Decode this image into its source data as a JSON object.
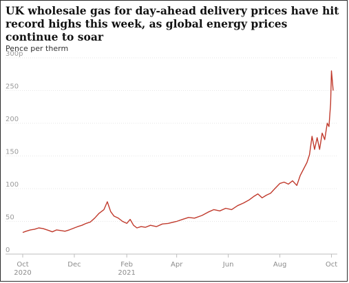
{
  "chart_data": {
    "type": "line",
    "title": "UK wholesale gas for day-ahead delivery prices have hit record highs this week, as global energy prices continue to soar",
    "ylabel": "Pence per therm",
    "xlabel": "",
    "ylim": [
      0,
      300
    ],
    "y_ticks": [
      {
        "value": 0,
        "label": "0"
      },
      {
        "value": 50,
        "label": "50"
      },
      {
        "value": 100,
        "label": "100"
      },
      {
        "value": 150,
        "label": "150"
      },
      {
        "value": 200,
        "label": "200"
      },
      {
        "value": 250,
        "label": "250"
      },
      {
        "value": 300,
        "label": "300p"
      }
    ],
    "x_ticks": [
      {
        "date": "2020-10-01",
        "label": "Oct",
        "sublabel": "2020"
      },
      {
        "date": "2020-12-01",
        "label": "Dec",
        "sublabel": ""
      },
      {
        "date": "2021-02-01",
        "label": "Feb",
        "sublabel": "2021"
      },
      {
        "date": "2021-04-01",
        "label": "Apr",
        "sublabel": ""
      },
      {
        "date": "2021-06-01",
        "label": "Jun",
        "sublabel": ""
      },
      {
        "date": "2021-08-01",
        "label": "Aug",
        "sublabel": ""
      },
      {
        "date": "2021-10-01",
        "label": "Oct",
        "sublabel": ""
      }
    ],
    "xlim": [
      "2020-10-01",
      "2021-10-03"
    ],
    "grid": true,
    "series": [
      {
        "color": "#c0392b",
        "points": [
          [
            "2020-10-01",
            33
          ],
          [
            "2020-10-05",
            35
          ],
          [
            "2020-10-10",
            37
          ],
          [
            "2020-10-15",
            38
          ],
          [
            "2020-10-20",
            40
          ],
          [
            "2020-10-25",
            39
          ],
          [
            "2020-11-01",
            36
          ],
          [
            "2020-11-05",
            34
          ],
          [
            "2020-11-10",
            37
          ],
          [
            "2020-11-15",
            36
          ],
          [
            "2020-11-20",
            35
          ],
          [
            "2020-11-25",
            37
          ],
          [
            "2020-12-01",
            40
          ],
          [
            "2020-12-05",
            42
          ],
          [
            "2020-12-10",
            44
          ],
          [
            "2020-12-15",
            47
          ],
          [
            "2020-12-20",
            49
          ],
          [
            "2020-12-25",
            55
          ],
          [
            "2020-12-30",
            62
          ],
          [
            "2021-01-05",
            68
          ],
          [
            "2021-01-09",
            80
          ],
          [
            "2021-01-13",
            65
          ],
          [
            "2021-01-17",
            58
          ],
          [
            "2021-01-22",
            55
          ],
          [
            "2021-01-27",
            50
          ],
          [
            "2021-02-01",
            47
          ],
          [
            "2021-02-05",
            53
          ],
          [
            "2021-02-09",
            44
          ],
          [
            "2021-02-13",
            40
          ],
          [
            "2021-02-18",
            42
          ],
          [
            "2021-02-23",
            41
          ],
          [
            "2021-03-01",
            44
          ],
          [
            "2021-03-08",
            42
          ],
          [
            "2021-03-15",
            46
          ],
          [
            "2021-03-22",
            47
          ],
          [
            "2021-04-01",
            50
          ],
          [
            "2021-04-08",
            53
          ],
          [
            "2021-04-15",
            56
          ],
          [
            "2021-04-22",
            55
          ],
          [
            "2021-05-01",
            59
          ],
          [
            "2021-05-08",
            64
          ],
          [
            "2021-05-15",
            68
          ],
          [
            "2021-05-22",
            66
          ],
          [
            "2021-05-29",
            70
          ],
          [
            "2021-06-05",
            68
          ],
          [
            "2021-06-12",
            74
          ],
          [
            "2021-06-19",
            78
          ],
          [
            "2021-06-26",
            83
          ],
          [
            "2021-07-01",
            88
          ],
          [
            "2021-07-06",
            92
          ],
          [
            "2021-07-11",
            86
          ],
          [
            "2021-07-16",
            90
          ],
          [
            "2021-07-21",
            93
          ],
          [
            "2021-07-26",
            100
          ],
          [
            "2021-08-01",
            108
          ],
          [
            "2021-08-06",
            110
          ],
          [
            "2021-08-11",
            107
          ],
          [
            "2021-08-16",
            112
          ],
          [
            "2021-08-21",
            105
          ],
          [
            "2021-08-25",
            120
          ],
          [
            "2021-08-29",
            130
          ],
          [
            "2021-09-02",
            140
          ],
          [
            "2021-09-05",
            152
          ],
          [
            "2021-09-08",
            180
          ],
          [
            "2021-09-11",
            160
          ],
          [
            "2021-09-14",
            178
          ],
          [
            "2021-09-17",
            160
          ],
          [
            "2021-09-20",
            185
          ],
          [
            "2021-09-23",
            175
          ],
          [
            "2021-09-26",
            200
          ],
          [
            "2021-09-28",
            195
          ],
          [
            "2021-09-30",
            230
          ],
          [
            "2021-10-01",
            280
          ],
          [
            "2021-10-02",
            265
          ],
          [
            "2021-10-03",
            250
          ]
        ]
      }
    ]
  }
}
